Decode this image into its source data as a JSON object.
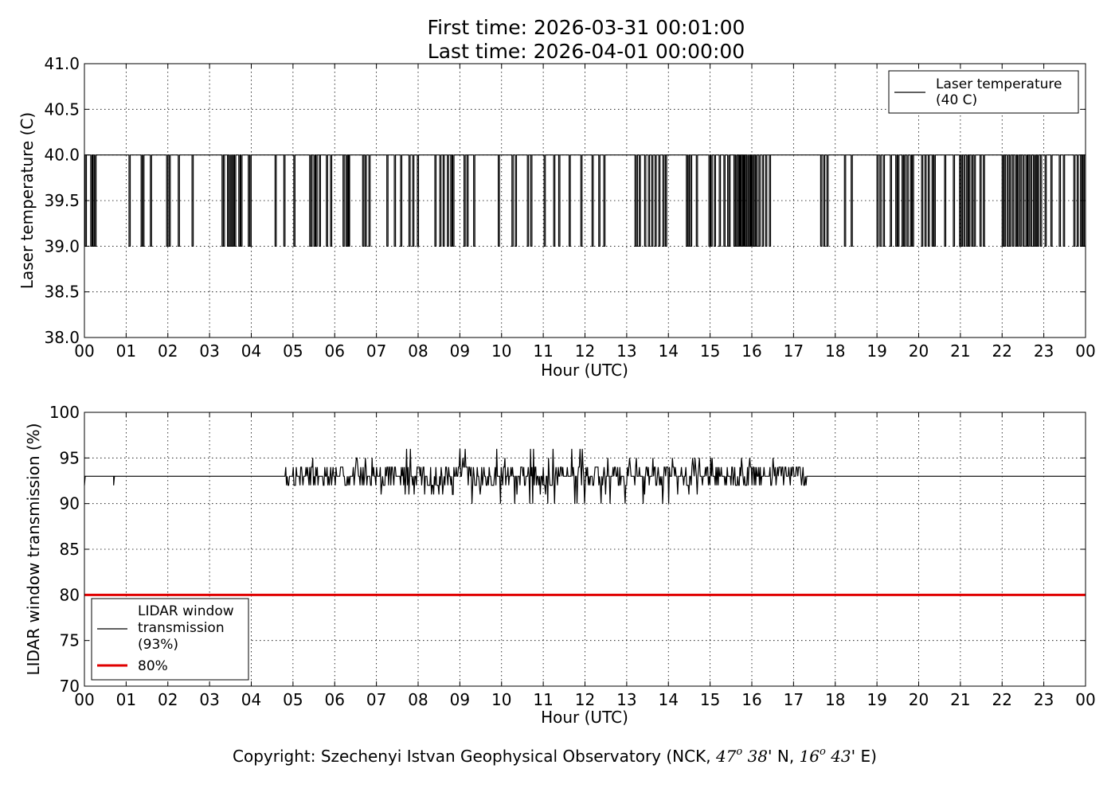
{
  "title": {
    "line1": "First time: 2026-03-31 00:01:00",
    "line2": "Last time: 2026-04-01 00:00:00"
  },
  "copyright": {
    "prefix": "Copyright: Szechenyi Istvan Geophysical Observatory (NCK, ",
    "lat_deg": "47",
    "lat_min": " 38",
    "lat_suffix": "' N, ",
    "lon_deg": "16",
    "lon_min": " 43",
    "lon_suffix": "' E)",
    "degree_mark": "o"
  },
  "chart_data": [
    {
      "type": "line",
      "xlabel": "Hour (UTC)",
      "ylabel": "Laser temperature (C)",
      "ylim": [
        38.0,
        41.0
      ],
      "yticks": [
        "38.0",
        "38.5",
        "39.0",
        "39.5",
        "40.0",
        "40.5",
        "41.0"
      ],
      "xlim": [
        0,
        24
      ],
      "xticks": [
        "00",
        "01",
        "02",
        "03",
        "04",
        "05",
        "06",
        "07",
        "08",
        "09",
        "10",
        "11",
        "12",
        "13",
        "14",
        "15",
        "16",
        "17",
        "18",
        "19",
        "20",
        "21",
        "22",
        "23",
        "00"
      ],
      "grid": true,
      "legend_position": "top-right",
      "series": [
        {
          "name": "Laser temperature\n(40 C)",
          "color": "#000000",
          "baseline": 40.0,
          "drop_value": 39.0,
          "drop_times": [
            0.02,
            0.15,
            0.2,
            0.25,
            1.07,
            1.36,
            1.4,
            1.58,
            1.97,
            2.03,
            2.25,
            2.58,
            3.3,
            3.33,
            3.43,
            3.47,
            3.5,
            3.55,
            3.6,
            3.7,
            3.75,
            3.93,
            3.97,
            4.57,
            4.78,
            5.02,
            5.4,
            5.43,
            5.5,
            5.55,
            5.63,
            5.8,
            5.9,
            6.2,
            6.27,
            6.32,
            6.33,
            6.67,
            6.73,
            6.82,
            7.25,
            7.43,
            7.58,
            7.78,
            7.87,
            7.98,
            8.4,
            8.52,
            8.6,
            8.7,
            8.78,
            8.83,
            9.1,
            9.17,
            9.33,
            9.92,
            10.25,
            10.33,
            10.62,
            10.7,
            11.02,
            11.25,
            11.37,
            11.62,
            11.9,
            12.17,
            12.33,
            12.45,
            13.2,
            13.23,
            13.3,
            13.43,
            13.52,
            13.6,
            13.68,
            13.77,
            13.87,
            13.93,
            14.43,
            14.47,
            14.53,
            14.67,
            14.97,
            15.02,
            15.1,
            15.22,
            15.33,
            15.42,
            15.45,
            15.57,
            15.62,
            15.68,
            15.7,
            15.75,
            15.78,
            15.8,
            15.85,
            15.88,
            15.92,
            15.95,
            15.97,
            16.02,
            16.05,
            16.1,
            16.17,
            16.25,
            16.33,
            16.42,
            17.65,
            17.72,
            17.8,
            18.22,
            18.38,
            19.0,
            19.07,
            19.15,
            19.32,
            19.45,
            19.5,
            19.6,
            19.65,
            19.72,
            19.8,
            19.85,
            20.07,
            20.15,
            20.23,
            20.32,
            20.37,
            20.62,
            20.83,
            20.98,
            21.02,
            21.08,
            21.15,
            21.2,
            21.27,
            21.33,
            21.47,
            21.55,
            22.0,
            22.05,
            22.12,
            22.18,
            22.25,
            22.32,
            22.37,
            22.43,
            22.5,
            22.57,
            22.62,
            22.68,
            22.75,
            22.8,
            22.85,
            22.92,
            23.03,
            23.17,
            23.37,
            23.47,
            23.72,
            23.8,
            23.88,
            23.93,
            23.97
          ]
        }
      ]
    },
    {
      "type": "line",
      "xlabel": "Hour (UTC)",
      "ylabel": "LIDAR window transmission (%)",
      "ylim": [
        70,
        100
      ],
      "yticks": [
        "70",
        "75",
        "80",
        "85",
        "90",
        "95",
        "100"
      ],
      "xlim": [
        0,
        24
      ],
      "xticks": [
        "00",
        "01",
        "02",
        "03",
        "04",
        "05",
        "06",
        "07",
        "08",
        "09",
        "10",
        "11",
        "12",
        "13",
        "14",
        "15",
        "16",
        "17",
        "18",
        "19",
        "20",
        "21",
        "22",
        "23",
        "00"
      ],
      "grid": true,
      "legend_position": "bottom-left",
      "series": [
        {
          "name": "LIDAR window\ntransmission\n(93%)",
          "color": "#000000",
          "baseline": 93,
          "start_dip": 92,
          "dip_times": [
            [
              0.7,
              92
            ]
          ],
          "noise_start": 4.7,
          "noise_end": 17.35,
          "noise_seed": 7,
          "noise_profile": [
            [
              4.7,
              94,
              92
            ],
            [
              6.0,
              95,
              92
            ],
            [
              7.0,
              96,
              91
            ],
            [
              9.0,
              96,
              90
            ],
            [
              12.5,
              96,
              90
            ],
            [
              14.3,
              95,
              90
            ],
            [
              16.5,
              95,
              92
            ],
            [
              17.35,
              94,
              92
            ]
          ]
        },
        {
          "name": "80%",
          "color": "#e00000",
          "constant": 80
        }
      ]
    }
  ]
}
